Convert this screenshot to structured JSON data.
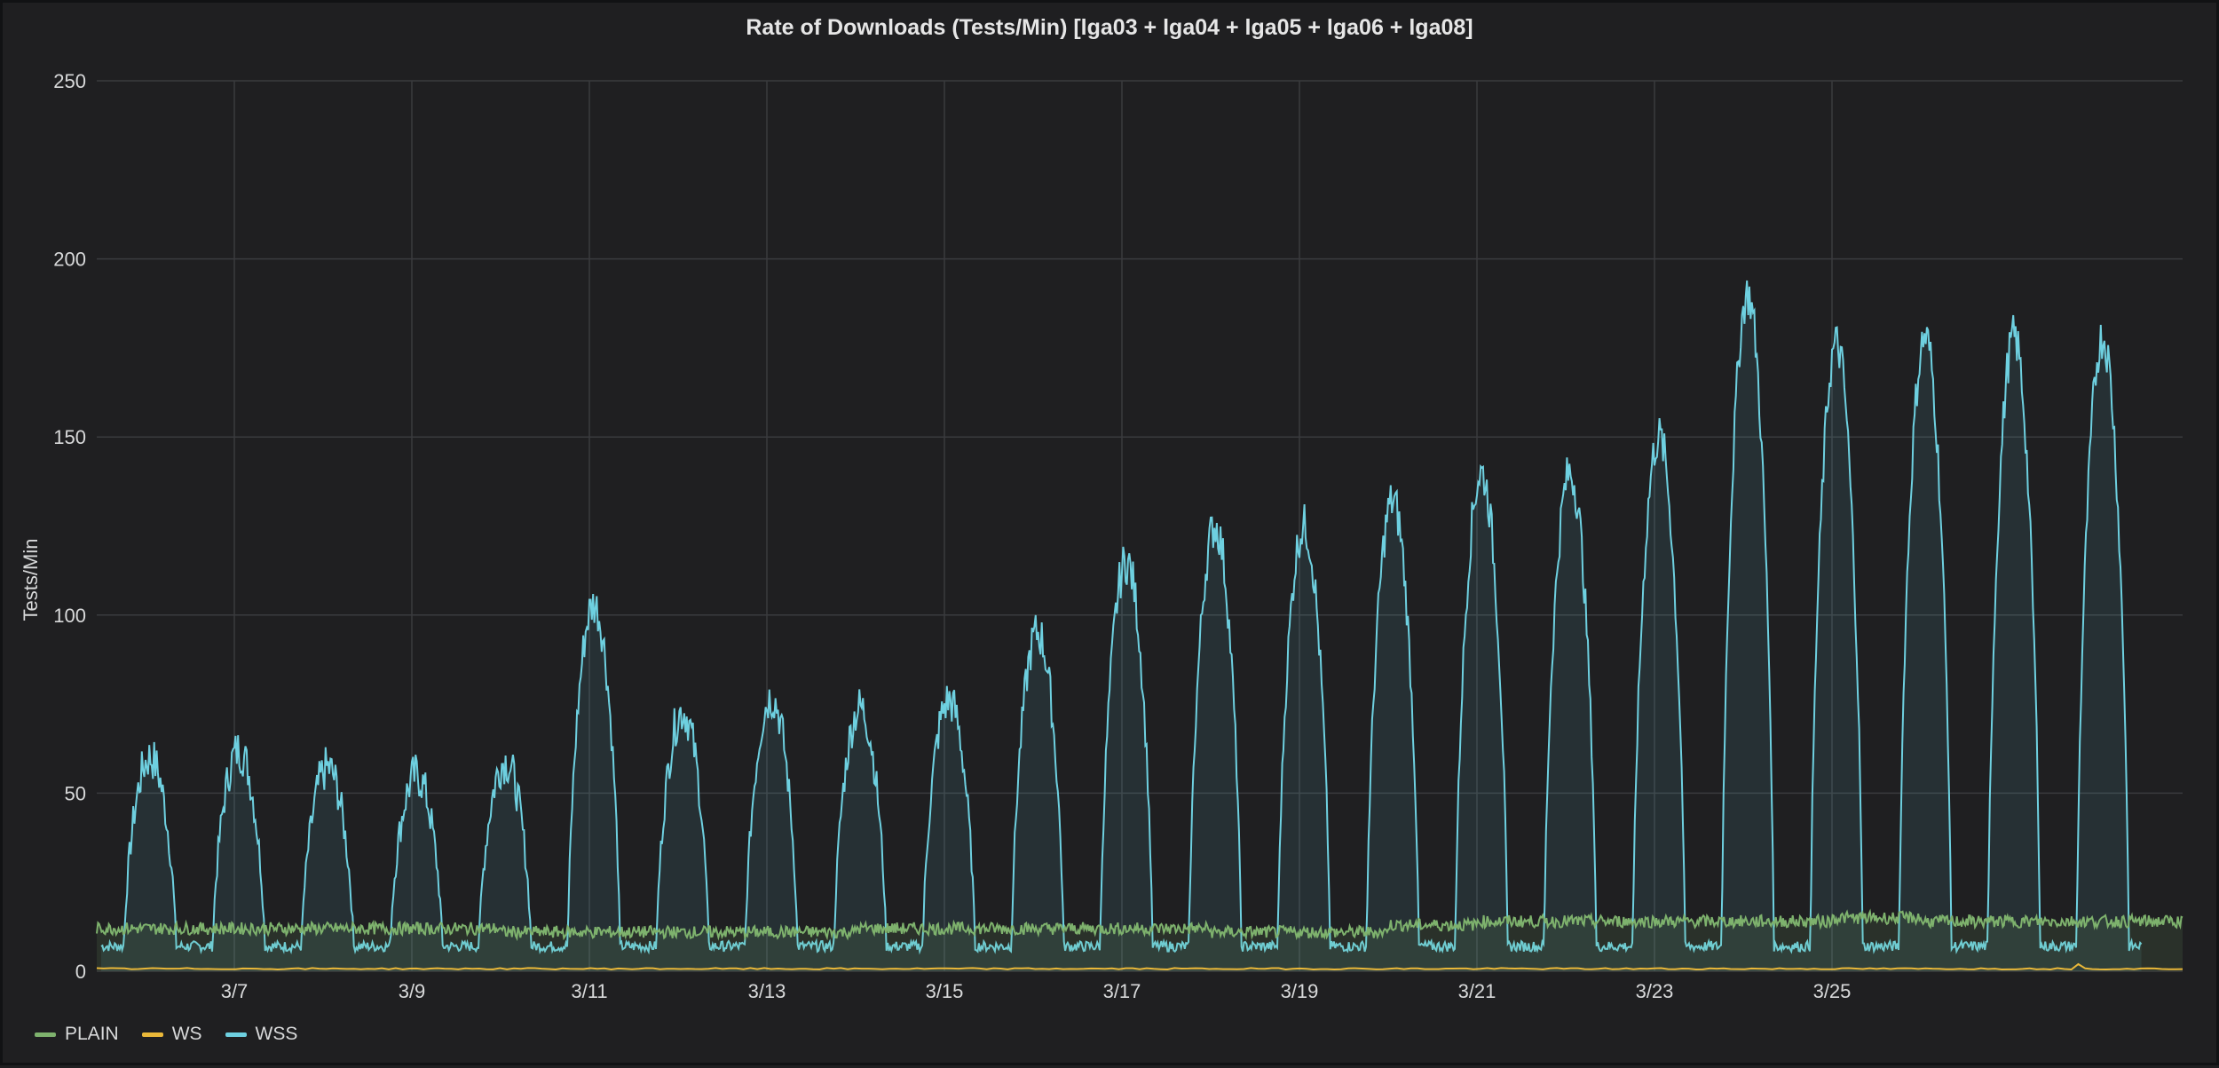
{
  "chart_data": {
    "type": "line",
    "title": "Rate of Downloads (Tests/Min) [lga03 + lga04 + lga05 + lga06 + lga08]",
    "ylabel": "Tests/Min",
    "xlabel": "",
    "ylim": [
      0,
      250
    ],
    "yticks": [
      "0",
      "50",
      "100",
      "150",
      "200",
      "250"
    ],
    "xticks": [
      "3/7",
      "3/9",
      "3/11",
      "3/13",
      "3/15",
      "3/17",
      "3/19",
      "3/21",
      "3/23",
      "3/25"
    ],
    "xdomain": [
      "3/6",
      "3/27"
    ],
    "grid": true,
    "legend_position": "bottom-left",
    "series": [
      {
        "name": "PLAIN",
        "color": "#7eb26d",
        "day_peaks": [
          12,
          12,
          12,
          12,
          11,
          11,
          11,
          11,
          12,
          12,
          12,
          12,
          11,
          11,
          13,
          14,
          14,
          14,
          14,
          15,
          14
        ]
      },
      {
        "name": "WS",
        "color": "#eab839",
        "day_peaks": [
          0.5,
          0.5,
          0.5,
          0.5,
          0.5,
          0.5,
          0.5,
          0.5,
          0.5,
          0.5,
          0.5,
          0.5,
          0.5,
          0.5,
          0.5,
          0.5,
          0.5,
          0.5,
          0.6,
          0.8,
          0.8
        ]
      },
      {
        "name": "WSS",
        "color": "#6ed0e0",
        "day_peaks": [
          60,
          62,
          57,
          55,
          59,
          103,
          73,
          77,
          74,
          76,
          95,
          115,
          125,
          125,
          132,
          140,
          140,
          150,
          190,
          176,
          178
        ]
      }
    ]
  }
}
